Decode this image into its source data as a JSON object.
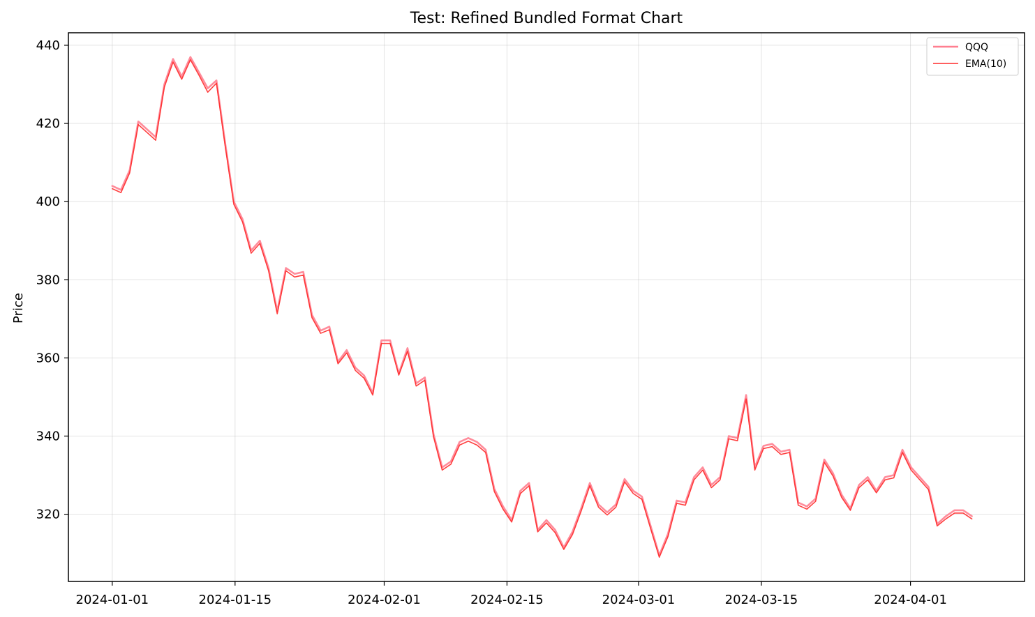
{
  "chart_data": {
    "type": "line",
    "title": "Test: Refined Bundled Format Chart",
    "xlabel": "",
    "ylabel": "Price",
    "grid": true,
    "legend_position": "top-right",
    "x_start": "2024-01-01",
    "x_end": "2024-04-08",
    "xlim": [
      "2023-12-27",
      "2024-04-14"
    ],
    "ylim": [
      302.8,
      443.2
    ],
    "x_ticks": [
      "2024-01-01",
      "2024-01-15",
      "2024-02-01",
      "2024-02-15",
      "2024-03-01",
      "2024-03-15",
      "2024-04-01"
    ],
    "y_ticks": [
      320,
      340,
      360,
      380,
      400,
      420,
      440
    ],
    "series": [
      {
        "name": "QQQ",
        "color": "#ff7f90",
        "values": [
          404.0,
          403.0,
          408.0,
          420.5,
          418.5,
          416.5,
          430.0,
          436.5,
          432.0,
          437.0,
          433.0,
          429.0,
          431.0,
          415.0,
          400.0,
          395.5,
          387.5,
          390.0,
          383.0,
          372.0,
          383.0,
          381.5,
          382.0,
          371.0,
          367.0,
          368.0,
          359.0,
          362.0,
          357.5,
          355.5,
          351.0,
          364.5,
          364.5,
          356.0,
          362.5,
          353.5,
          355.0,
          340.5,
          332.0,
          333.5,
          338.5,
          339.5,
          338.5,
          336.5,
          326.5,
          322.0,
          318.5,
          326.0,
          328.0,
          316.0,
          318.5,
          316.0,
          311.5,
          315.5,
          321.5,
          328.0,
          322.5,
          320.5,
          322.5,
          329.0,
          326.0,
          324.5,
          317.0,
          309.5,
          315.0,
          323.5,
          323.0,
          329.5,
          332.0,
          327.5,
          329.5,
          340.0,
          339.5,
          350.5,
          332.0,
          337.5,
          338.0,
          336.0,
          336.5,
          323.0,
          322.0,
          324.0,
          334.0,
          330.5,
          325.0,
          321.5,
          327.5,
          329.5,
          326.0,
          329.5,
          330.0,
          336.5,
          332.0,
          329.5,
          327.0,
          317.5,
          319.5,
          321.0,
          321.0,
          319.5
        ]
      },
      {
        "name": "EMA(10)",
        "color": "#ff2a2a",
        "values": [
          403.3,
          402.3,
          407.3,
          419.7,
          417.7,
          415.7,
          429.3,
          435.7,
          431.3,
          436.3,
          432.3,
          428.0,
          430.3,
          414.3,
          399.3,
          394.8,
          386.8,
          389.3,
          382.3,
          371.3,
          382.3,
          380.7,
          381.2,
          370.3,
          366.3,
          367.2,
          358.5,
          361.3,
          356.8,
          354.8,
          350.5,
          363.7,
          363.7,
          355.6,
          361.7,
          352.8,
          354.3,
          339.8,
          331.3,
          332.8,
          337.7,
          338.7,
          337.7,
          335.8,
          325.8,
          321.3,
          318.0,
          325.3,
          327.3,
          315.5,
          317.8,
          315.3,
          311.0,
          314.8,
          320.8,
          327.3,
          321.8,
          319.8,
          321.8,
          328.3,
          325.3,
          323.8,
          316.3,
          309.0,
          314.3,
          322.8,
          322.3,
          328.8,
          331.3,
          326.8,
          328.8,
          339.3,
          338.8,
          349.5,
          331.3,
          336.8,
          337.3,
          335.3,
          335.8,
          322.3,
          321.3,
          323.3,
          333.3,
          329.8,
          324.3,
          321.0,
          326.8,
          328.8,
          325.5,
          328.8,
          329.3,
          335.8,
          331.3,
          328.8,
          326.3,
          317.0,
          318.8,
          320.3,
          320.3,
          318.8
        ]
      }
    ]
  }
}
